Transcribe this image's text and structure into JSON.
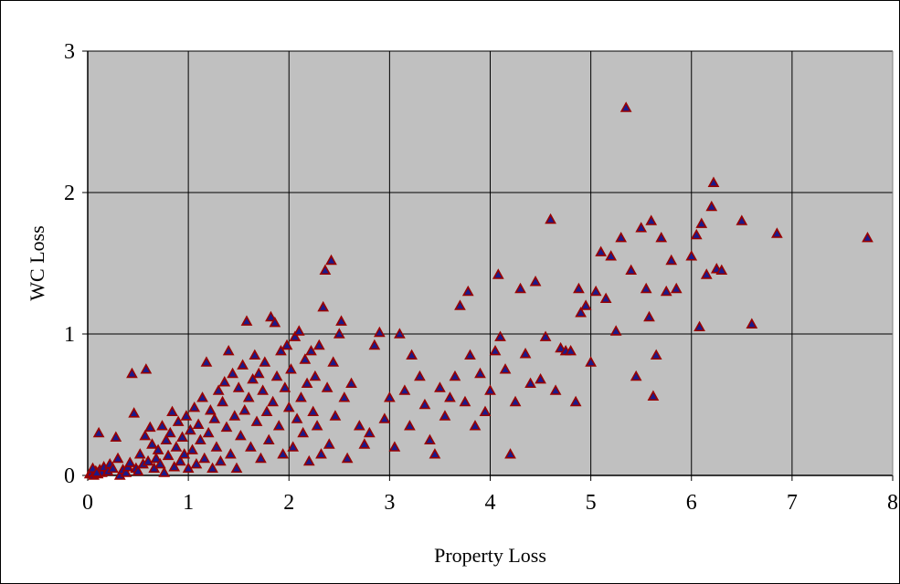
{
  "chart_data": {
    "type": "scatter",
    "title": "",
    "xlabel": "Property  Loss",
    "ylabel": "WC  Loss",
    "xlim": [
      0,
      8
    ],
    "ylim": [
      0,
      3
    ],
    "xticks": [
      "0",
      "1",
      "2",
      "3",
      "4",
      "5",
      "6",
      "7",
      "8"
    ],
    "yticks": [
      "0",
      "1",
      "2",
      "3"
    ],
    "grid": true,
    "legend": "none",
    "plot_background": "#c0c0c0",
    "marker": {
      "shape": "triangle",
      "fill": "#1a1a8c",
      "edge": "#990000"
    },
    "points": [
      [
        0.02,
        0.01
      ],
      [
        0.04,
        0.02
      ],
      [
        0.06,
        0.0
      ],
      [
        0.08,
        0.03
      ],
      [
        0.1,
        0.01
      ],
      [
        0.12,
        0.04
      ],
      [
        0.14,
        0.02
      ],
      [
        0.05,
        0.05
      ],
      [
        0.09,
        0.02
      ],
      [
        0.11,
        0.3
      ],
      [
        0.16,
        0.06
      ],
      [
        0.2,
        0.03
      ],
      [
        0.22,
        0.08
      ],
      [
        0.25,
        0.05
      ],
      [
        0.28,
        0.27
      ],
      [
        0.3,
        0.12
      ],
      [
        0.32,
        0.0
      ],
      [
        0.35,
        0.04
      ],
      [
        0.38,
        0.02
      ],
      [
        0.4,
        0.06
      ],
      [
        0.42,
        0.09
      ],
      [
        0.44,
        0.72
      ],
      [
        0.46,
        0.44
      ],
      [
        0.48,
        0.05
      ],
      [
        0.5,
        0.03
      ],
      [
        0.52,
        0.15
      ],
      [
        0.55,
        0.08
      ],
      [
        0.57,
        0.28
      ],
      [
        0.58,
        0.75
      ],
      [
        0.6,
        0.1
      ],
      [
        0.62,
        0.34
      ],
      [
        0.64,
        0.22
      ],
      [
        0.66,
        0.05
      ],
      [
        0.68,
        0.12
      ],
      [
        0.7,
        0.18
      ],
      [
        0.72,
        0.08
      ],
      [
        0.74,
        0.35
      ],
      [
        0.76,
        0.02
      ],
      [
        0.78,
        0.25
      ],
      [
        0.8,
        0.14
      ],
      [
        0.82,
        0.3
      ],
      [
        0.84,
        0.45
      ],
      [
        0.86,
        0.06
      ],
      [
        0.88,
        0.2
      ],
      [
        0.9,
        0.38
      ],
      [
        0.92,
        0.1
      ],
      [
        0.94,
        0.27
      ],
      [
        0.96,
        0.15
      ],
      [
        0.98,
        0.42
      ],
      [
        1.0,
        0.05
      ],
      [
        1.02,
        0.32
      ],
      [
        1.04,
        0.18
      ],
      [
        1.06,
        0.48
      ],
      [
        1.08,
        0.08
      ],
      [
        1.1,
        0.36
      ],
      [
        1.12,
        0.25
      ],
      [
        1.14,
        0.55
      ],
      [
        1.16,
        0.12
      ],
      [
        1.18,
        0.8
      ],
      [
        1.2,
        0.3
      ],
      [
        1.22,
        0.46
      ],
      [
        1.24,
        0.05
      ],
      [
        1.26,
        0.4
      ],
      [
        1.28,
        0.2
      ],
      [
        1.3,
        0.6
      ],
      [
        1.32,
        0.1
      ],
      [
        1.34,
        0.52
      ],
      [
        1.36,
        0.66
      ],
      [
        1.38,
        0.34
      ],
      [
        1.4,
        0.88
      ],
      [
        1.42,
        0.15
      ],
      [
        1.44,
        0.72
      ],
      [
        1.46,
        0.42
      ],
      [
        1.48,
        0.05
      ],
      [
        1.5,
        0.62
      ],
      [
        1.52,
        0.28
      ],
      [
        1.54,
        0.78
      ],
      [
        1.56,
        0.46
      ],
      [
        1.58,
        1.09
      ],
      [
        1.6,
        0.55
      ],
      [
        1.62,
        0.2
      ],
      [
        1.64,
        0.68
      ],
      [
        1.66,
        0.85
      ],
      [
        1.68,
        0.38
      ],
      [
        1.7,
        0.72
      ],
      [
        1.72,
        0.12
      ],
      [
        1.74,
        0.6
      ],
      [
        1.76,
        0.8
      ],
      [
        1.78,
        0.45
      ],
      [
        1.8,
        0.25
      ],
      [
        1.82,
        1.12
      ],
      [
        1.84,
        0.52
      ],
      [
        1.86,
        1.08
      ],
      [
        1.88,
        0.7
      ],
      [
        1.9,
        0.35
      ],
      [
        1.92,
        0.88
      ],
      [
        1.94,
        0.15
      ],
      [
        1.96,
        0.62
      ],
      [
        1.98,
        0.92
      ],
      [
        2.0,
        0.48
      ],
      [
        2.02,
        0.75
      ],
      [
        2.04,
        0.2
      ],
      [
        2.06,
        0.98
      ],
      [
        2.08,
        0.4
      ],
      [
        2.1,
        1.02
      ],
      [
        2.12,
        0.55
      ],
      [
        2.14,
        0.3
      ],
      [
        2.16,
        0.82
      ],
      [
        2.18,
        0.65
      ],
      [
        2.2,
        0.1
      ],
      [
        2.22,
        0.88
      ],
      [
        2.24,
        0.45
      ],
      [
        2.26,
        0.7
      ],
      [
        2.28,
        0.35
      ],
      [
        2.3,
        0.92
      ],
      [
        2.32,
        0.15
      ],
      [
        2.34,
        1.19
      ],
      [
        2.36,
        1.45
      ],
      [
        2.38,
        0.62
      ],
      [
        2.4,
        0.22
      ],
      [
        2.42,
        1.52
      ],
      [
        2.44,
        0.8
      ],
      [
        2.46,
        0.42
      ],
      [
        2.5,
        1.0
      ],
      [
        2.52,
        1.09
      ],
      [
        2.55,
        0.55
      ],
      [
        2.58,
        0.12
      ],
      [
        2.62,
        0.65
      ],
      [
        2.7,
        0.35
      ],
      [
        2.75,
        0.22
      ],
      [
        2.8,
        0.3
      ],
      [
        2.85,
        0.92
      ],
      [
        2.9,
        1.01
      ],
      [
        2.95,
        0.4
      ],
      [
        3.0,
        0.55
      ],
      [
        3.05,
        0.2
      ],
      [
        3.1,
        1.0
      ],
      [
        3.15,
        0.6
      ],
      [
        3.2,
        0.35
      ],
      [
        3.22,
        0.85
      ],
      [
        3.3,
        0.7
      ],
      [
        3.35,
        0.5
      ],
      [
        3.4,
        0.25
      ],
      [
        3.45,
        0.15
      ],
      [
        3.5,
        0.62
      ],
      [
        3.55,
        0.42
      ],
      [
        3.6,
        0.55
      ],
      [
        3.65,
        0.7
      ],
      [
        3.7,
        1.2
      ],
      [
        3.75,
        0.52
      ],
      [
        3.78,
        1.3
      ],
      [
        3.8,
        0.85
      ],
      [
        3.85,
        0.35
      ],
      [
        3.9,
        0.72
      ],
      [
        3.95,
        0.45
      ],
      [
        4.0,
        0.6
      ],
      [
        4.05,
        0.88
      ],
      [
        4.08,
        1.42
      ],
      [
        4.1,
        0.98
      ],
      [
        4.15,
        0.75
      ],
      [
        4.2,
        0.15
      ],
      [
        4.25,
        0.52
      ],
      [
        4.3,
        1.32
      ],
      [
        4.35,
        0.86
      ],
      [
        4.4,
        0.65
      ],
      [
        4.45,
        1.37
      ],
      [
        4.5,
        0.68
      ],
      [
        4.55,
        0.98
      ],
      [
        4.6,
        1.81
      ],
      [
        4.65,
        0.6
      ],
      [
        4.7,
        0.9
      ],
      [
        4.75,
        0.88
      ],
      [
        4.8,
        0.88
      ],
      [
        4.85,
        0.52
      ],
      [
        4.88,
        1.32
      ],
      [
        4.9,
        1.15
      ],
      [
        4.95,
        1.2
      ],
      [
        5.0,
        0.8
      ],
      [
        5.05,
        1.3
      ],
      [
        5.1,
        1.58
      ],
      [
        5.15,
        1.25
      ],
      [
        5.2,
        1.55
      ],
      [
        5.25,
        1.02
      ],
      [
        5.3,
        1.68
      ],
      [
        5.35,
        2.6
      ],
      [
        5.4,
        1.45
      ],
      [
        5.45,
        0.7
      ],
      [
        5.5,
        1.75
      ],
      [
        5.55,
        1.32
      ],
      [
        5.6,
        1.8
      ],
      [
        5.62,
        0.56
      ],
      [
        5.65,
        0.85
      ],
      [
        5.7,
        1.68
      ],
      [
        5.75,
        1.3
      ],
      [
        5.8,
        1.52
      ],
      [
        5.85,
        1.32
      ],
      [
        6.0,
        1.55
      ],
      [
        6.05,
        1.7
      ],
      [
        6.1,
        1.78
      ],
      [
        6.15,
        1.42
      ],
      [
        6.2,
        1.9
      ],
      [
        6.22,
        2.07
      ],
      [
        6.25,
        1.46
      ],
      [
        6.3,
        1.45
      ],
      [
        6.5,
        1.8
      ],
      [
        6.6,
        1.07
      ],
      [
        6.85,
        1.71
      ],
      [
        7.75,
        1.68
      ],
      [
        6.08,
        1.05
      ],
      [
        5.58,
        1.12
      ]
    ]
  }
}
